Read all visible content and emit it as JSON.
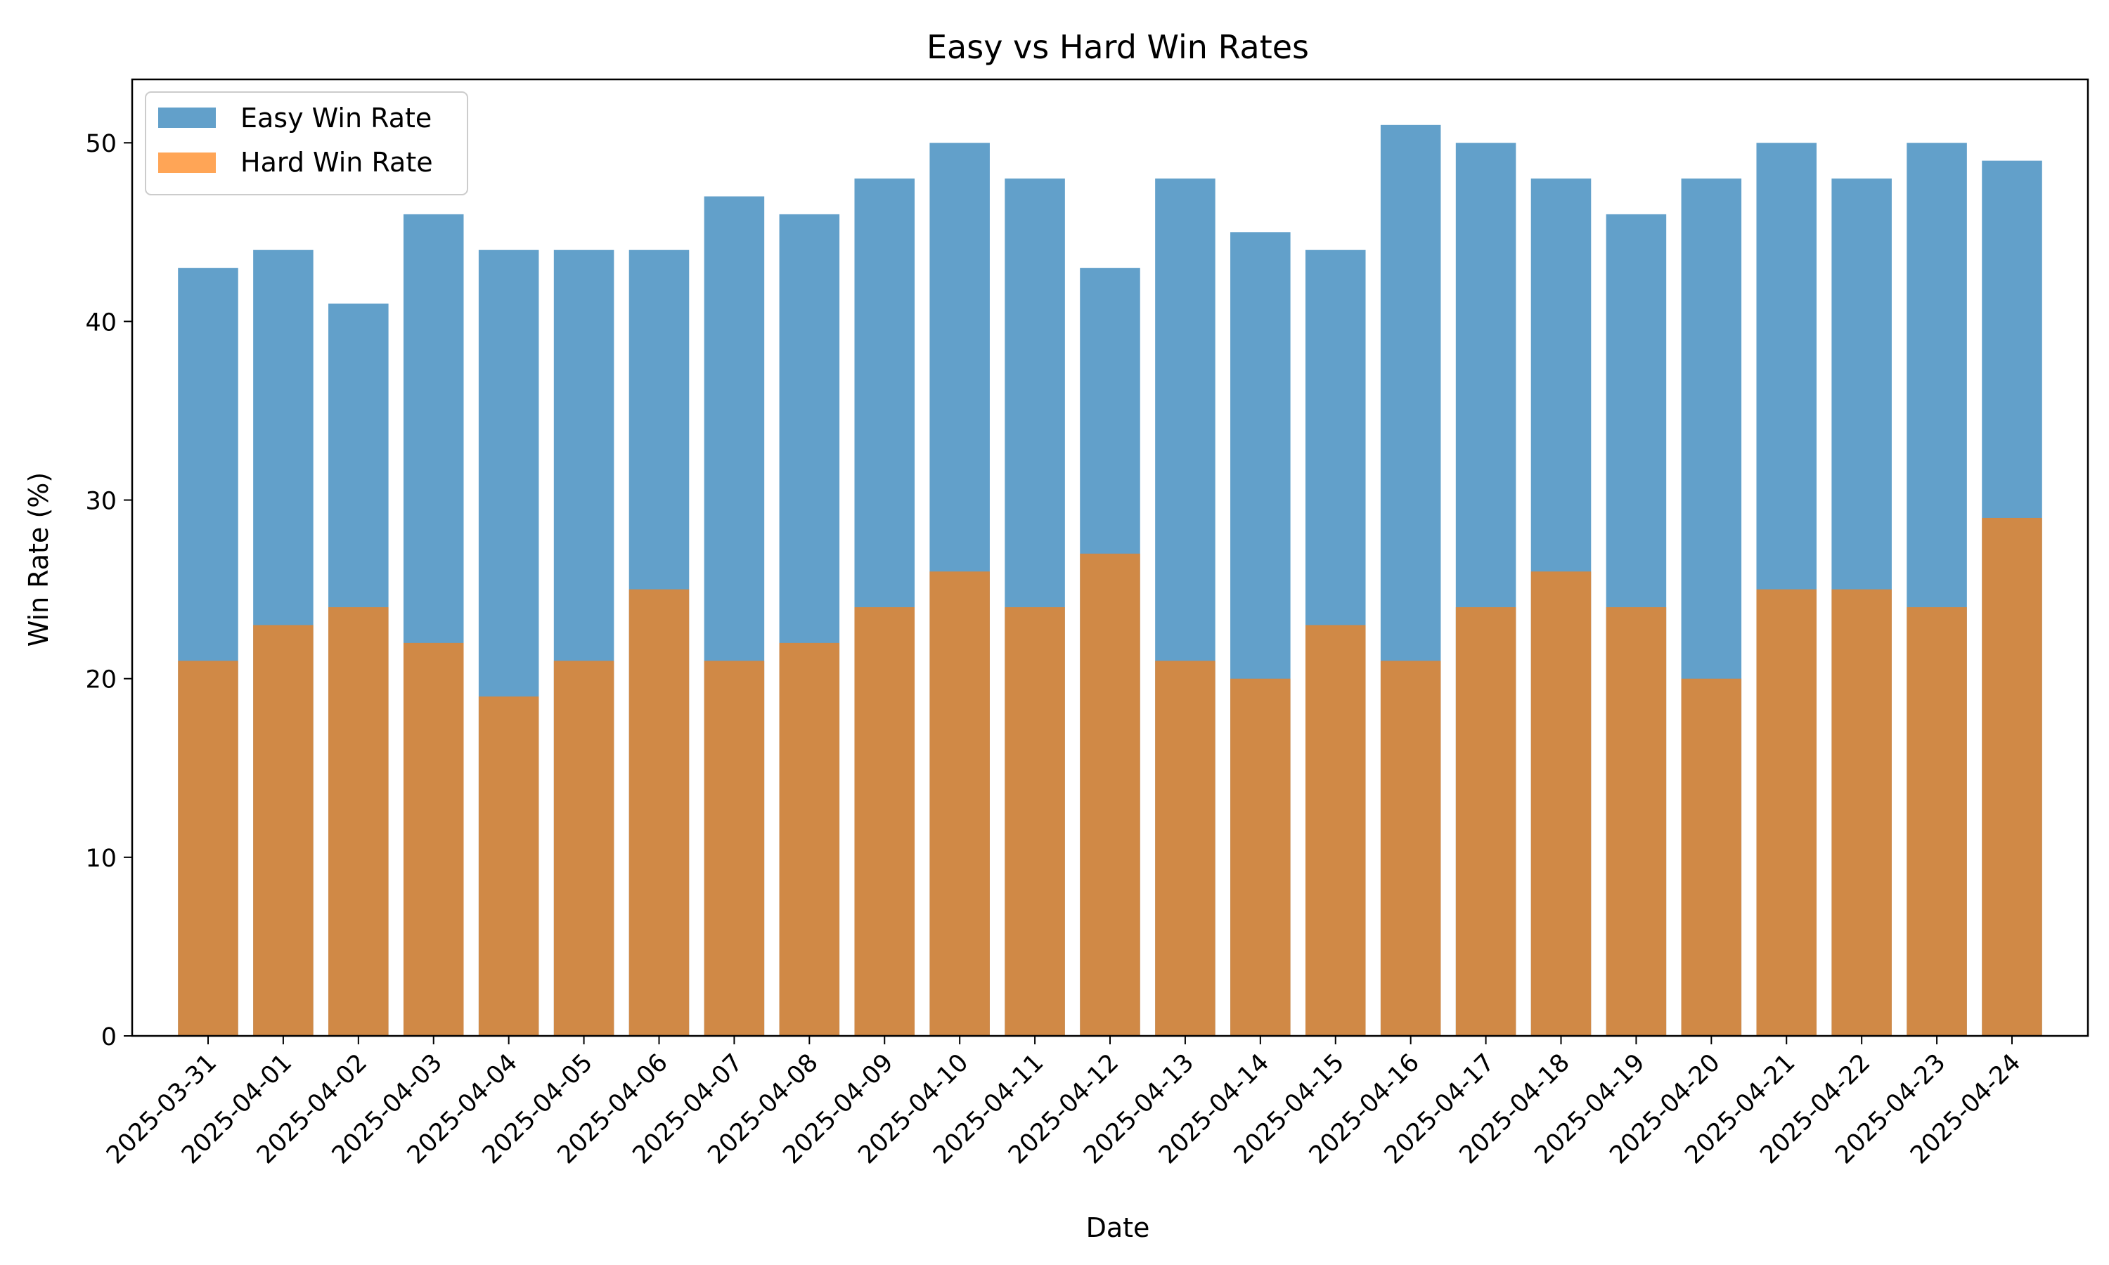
{
  "chart_data": {
    "type": "bar",
    "title": "Easy vs Hard Win Rates",
    "xlabel": "Date",
    "ylabel": "Win Rate (%)",
    "ylim": [
      0,
      53.55
    ],
    "yticks": [
      0,
      10,
      20,
      30,
      40,
      50
    ],
    "grid": false,
    "legend_position": "top-left",
    "overlay": true,
    "categories": [
      "2025-03-31",
      "2025-04-01",
      "2025-04-02",
      "2025-04-03",
      "2025-04-04",
      "2025-04-05",
      "2025-04-06",
      "2025-04-07",
      "2025-04-08",
      "2025-04-09",
      "2025-04-10",
      "2025-04-11",
      "2025-04-12",
      "2025-04-13",
      "2025-04-14",
      "2025-04-15",
      "2025-04-16",
      "2025-04-17",
      "2025-04-18",
      "2025-04-19",
      "2025-04-20",
      "2025-04-21",
      "2025-04-22",
      "2025-04-23",
      "2025-04-24"
    ],
    "series": [
      {
        "name": "Easy Win Rate",
        "color": "#1f77b4",
        "opacity": 0.7,
        "values": [
          43,
          44,
          41,
          46,
          44,
          44,
          44,
          47,
          46,
          48,
          50,
          48,
          43,
          48,
          45,
          44,
          51,
          50,
          48,
          46,
          48,
          50,
          48,
          50,
          49
        ]
      },
      {
        "name": "Hard Win Rate",
        "color": "#ff7f0e",
        "opacity": 0.7,
        "values": [
          21,
          23,
          24,
          22,
          19,
          21,
          25,
          21,
          22,
          24,
          26,
          24,
          27,
          21,
          20,
          23,
          21,
          24,
          26,
          24,
          20,
          25,
          25,
          24,
          29
        ]
      }
    ]
  }
}
